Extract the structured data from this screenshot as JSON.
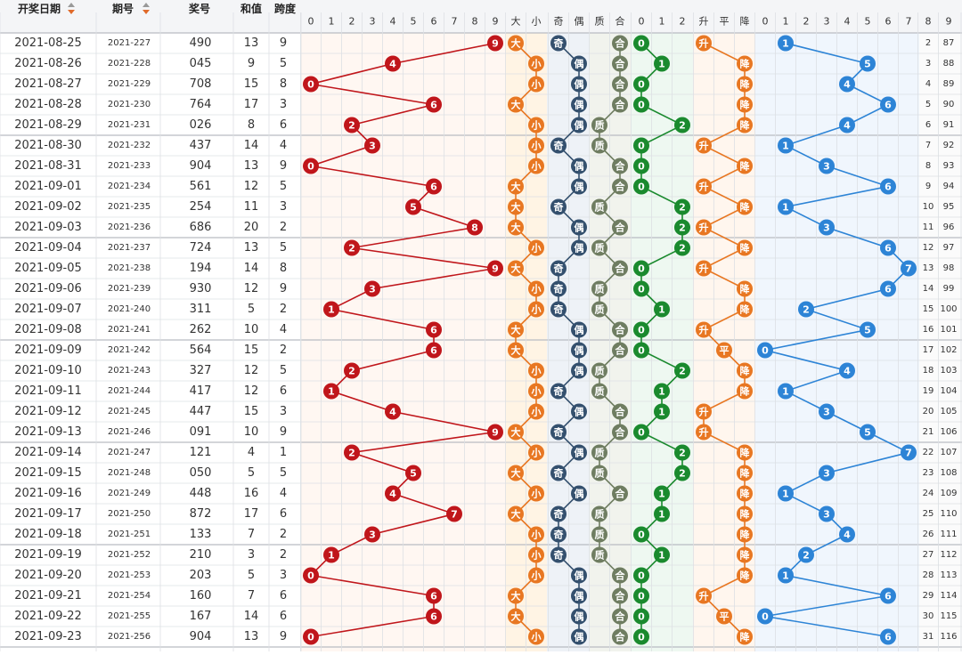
{
  "header": {
    "date": "开奖日期",
    "issue": "期号",
    "number": "奖号",
    "sum": "和值",
    "span": "跨度",
    "digits": [
      "0",
      "1",
      "2",
      "3",
      "4",
      "5",
      "6",
      "7",
      "8",
      "9"
    ],
    "big": "大",
    "small": "小",
    "odd": "奇",
    "even": "偶",
    "prime": "质",
    "composite": "合",
    "road": [
      "0",
      "1",
      "2"
    ],
    "up": "升",
    "flat": "平",
    "down": "降",
    "sum_digits": [
      "0",
      "1",
      "2",
      "3",
      "4",
      "5",
      "6",
      "7",
      "8",
      "9"
    ]
  },
  "colors": {
    "red": "#c0161b",
    "orange": "#e87722",
    "navy": "#34506e",
    "olive": "#6f7d61",
    "green": "#1a8a2e",
    "blue": "#2d84d6",
    "teal": "#6fb6b2"
  },
  "chart_data": {
    "type": "table",
    "rows": [
      {
        "date": "2021-08-25",
        "issue": "2021-227",
        "num": "490",
        "sum": "13",
        "span": "9",
        "d": "9",
        "bs": "大",
        "oe": "奇",
        "pc": "合",
        "rd": "0",
        "ud": "升",
        "tail": "1",
        "c1": "2",
        "c2": "87"
      },
      {
        "date": "2021-08-26",
        "issue": "2021-228",
        "num": "045",
        "sum": "9",
        "span": "5",
        "d": "4",
        "bs": "小",
        "oe": "偶",
        "pc": "合",
        "rd": "1",
        "ud": "降",
        "tail": "5",
        "c1": "3",
        "c2": "88"
      },
      {
        "date": "2021-08-27",
        "issue": "2021-229",
        "num": "708",
        "sum": "15",
        "span": "8",
        "d": "0",
        "bs": "小",
        "oe": "偶",
        "pc": "合",
        "rd": "0",
        "ud": "降",
        "tail": "4",
        "c1": "4",
        "c2": "89"
      },
      {
        "date": "2021-08-28",
        "issue": "2021-230",
        "num": "764",
        "sum": "17",
        "span": "3",
        "d": "6",
        "bs": "大",
        "oe": "偶",
        "pc": "合",
        "rd": "0",
        "ud": "降",
        "tail": "6",
        "c1": "5",
        "c2": "90"
      },
      {
        "date": "2021-08-29",
        "issue": "2021-231",
        "num": "026",
        "sum": "8",
        "span": "6",
        "d": "2",
        "bs": "小",
        "oe": "偶",
        "pc": "质",
        "rd": "2",
        "ud": "降",
        "tail": "4",
        "c1": "6",
        "c2": "91"
      },
      {
        "date": "2021-08-30",
        "issue": "2021-232",
        "num": "437",
        "sum": "14",
        "span": "4",
        "d": "3",
        "bs": "小",
        "oe": "奇",
        "pc": "质",
        "rd": "0",
        "ud": "升",
        "tail": "1",
        "c1": "7",
        "c2": "92"
      },
      {
        "date": "2021-08-31",
        "issue": "2021-233",
        "num": "904",
        "sum": "13",
        "span": "9",
        "d": "0",
        "bs": "小",
        "oe": "偶",
        "pc": "合",
        "rd": "0",
        "ud": "降",
        "tail": "3",
        "c1": "8",
        "c2": "93"
      },
      {
        "date": "2021-09-01",
        "issue": "2021-234",
        "num": "561",
        "sum": "12",
        "span": "5",
        "d": "6",
        "bs": "大",
        "oe": "偶",
        "pc": "合",
        "rd": "0",
        "ud": "升",
        "tail": "6",
        "c1": "9",
        "c2": "94"
      },
      {
        "date": "2021-09-02",
        "issue": "2021-235",
        "num": "254",
        "sum": "11",
        "span": "3",
        "d": "5",
        "bs": "大",
        "oe": "奇",
        "pc": "质",
        "rd": "2",
        "ud": "降",
        "tail": "1",
        "c1": "10",
        "c2": "95"
      },
      {
        "date": "2021-09-03",
        "issue": "2021-236",
        "num": "686",
        "sum": "20",
        "span": "2",
        "d": "8",
        "bs": "大",
        "oe": "偶",
        "pc": "合",
        "rd": "2",
        "ud": "升",
        "tail": "3",
        "c1": "11",
        "c2": "96"
      },
      {
        "date": "2021-09-04",
        "issue": "2021-237",
        "num": "724",
        "sum": "13",
        "span": "5",
        "d": "2",
        "bs": "小",
        "oe": "偶",
        "pc": "质",
        "rd": "2",
        "ud": "降",
        "tail": "6",
        "c1": "12",
        "c2": "97"
      },
      {
        "date": "2021-09-05",
        "issue": "2021-238",
        "num": "194",
        "sum": "14",
        "span": "8",
        "d": "9",
        "bs": "大",
        "oe": "奇",
        "pc": "合",
        "rd": "0",
        "ud": "升",
        "tail": "7",
        "c1": "13",
        "c2": "98"
      },
      {
        "date": "2021-09-06",
        "issue": "2021-239",
        "num": "930",
        "sum": "12",
        "span": "9",
        "d": "3",
        "bs": "小",
        "oe": "奇",
        "pc": "质",
        "rd": "0",
        "ud": "降",
        "tail": "6",
        "c1": "14",
        "c2": "99"
      },
      {
        "date": "2021-09-07",
        "issue": "2021-240",
        "num": "311",
        "sum": "5",
        "span": "2",
        "d": "1",
        "bs": "小",
        "oe": "奇",
        "pc": "质",
        "rd": "1",
        "ud": "降",
        "tail": "2",
        "c1": "15",
        "c2": "100"
      },
      {
        "date": "2021-09-08",
        "issue": "2021-241",
        "num": "262",
        "sum": "10",
        "span": "4",
        "d": "6",
        "bs": "大",
        "oe": "偶",
        "pc": "合",
        "rd": "0",
        "ud": "升",
        "tail": "5",
        "c1": "16",
        "c2": "101"
      },
      {
        "date": "2021-09-09",
        "issue": "2021-242",
        "num": "564",
        "sum": "15",
        "span": "2",
        "d": "6",
        "bs": "大",
        "oe": "偶",
        "pc": "合",
        "rd": "0",
        "ud": "平",
        "tail": "0",
        "c1": "17",
        "c2": "102"
      },
      {
        "date": "2021-09-10",
        "issue": "2021-243",
        "num": "327",
        "sum": "12",
        "span": "5",
        "d": "2",
        "bs": "小",
        "oe": "偶",
        "pc": "质",
        "rd": "2",
        "ud": "降",
        "tail": "4",
        "c1": "18",
        "c2": "103"
      },
      {
        "date": "2021-09-11",
        "issue": "2021-244",
        "num": "417",
        "sum": "12",
        "span": "6",
        "d": "1",
        "bs": "小",
        "oe": "奇",
        "pc": "质",
        "rd": "1",
        "ud": "降",
        "tail": "1",
        "c1": "19",
        "c2": "104"
      },
      {
        "date": "2021-09-12",
        "issue": "2021-245",
        "num": "447",
        "sum": "15",
        "span": "3",
        "d": "4",
        "bs": "小",
        "oe": "偶",
        "pc": "合",
        "rd": "1",
        "ud": "升",
        "tail": "3",
        "c1": "20",
        "c2": "105"
      },
      {
        "date": "2021-09-13",
        "issue": "2021-246",
        "num": "091",
        "sum": "10",
        "span": "9",
        "d": "9",
        "bs": "大",
        "oe": "奇",
        "pc": "合",
        "rd": "0",
        "ud": "升",
        "tail": "5",
        "c1": "21",
        "c2": "106"
      },
      {
        "date": "2021-09-14",
        "issue": "2021-247",
        "num": "121",
        "sum": "4",
        "span": "1",
        "d": "2",
        "bs": "小",
        "oe": "偶",
        "pc": "质",
        "rd": "2",
        "ud": "降",
        "tail": "7",
        "c1": "22",
        "c2": "107"
      },
      {
        "date": "2021-09-15",
        "issue": "2021-248",
        "num": "050",
        "sum": "5",
        "span": "5",
        "d": "5",
        "bs": "大",
        "oe": "奇",
        "pc": "质",
        "rd": "2",
        "ud": "降",
        "tail": "3",
        "c1": "23",
        "c2": "108"
      },
      {
        "date": "2021-09-16",
        "issue": "2021-249",
        "num": "448",
        "sum": "16",
        "span": "4",
        "d": "4",
        "bs": "小",
        "oe": "偶",
        "pc": "合",
        "rd": "1",
        "ud": "降",
        "tail": "1",
        "c1": "24",
        "c2": "109"
      },
      {
        "date": "2021-09-17",
        "issue": "2021-250",
        "num": "872",
        "sum": "17",
        "span": "6",
        "d": "7",
        "bs": "大",
        "oe": "奇",
        "pc": "质",
        "rd": "1",
        "ud": "降",
        "tail": "3",
        "c1": "25",
        "c2": "110"
      },
      {
        "date": "2021-09-18",
        "issue": "2021-251",
        "num": "133",
        "sum": "7",
        "span": "2",
        "d": "3",
        "bs": "小",
        "oe": "奇",
        "pc": "质",
        "rd": "0",
        "ud": "降",
        "tail": "4",
        "c1": "26",
        "c2": "111"
      },
      {
        "date": "2021-09-19",
        "issue": "2021-252",
        "num": "210",
        "sum": "3",
        "span": "2",
        "d": "1",
        "bs": "小",
        "oe": "奇",
        "pc": "质",
        "rd": "1",
        "ud": "降",
        "tail": "2",
        "c1": "27",
        "c2": "112"
      },
      {
        "date": "2021-09-20",
        "issue": "2021-253",
        "num": "203",
        "sum": "5",
        "span": "3",
        "d": "0",
        "bs": "小",
        "oe": "偶",
        "pc": "合",
        "rd": "0",
        "ud": "降",
        "tail": "1",
        "c1": "28",
        "c2": "113"
      },
      {
        "date": "2021-09-21",
        "issue": "2021-254",
        "num": "160",
        "sum": "7",
        "span": "6",
        "d": "6",
        "bs": "大",
        "oe": "偶",
        "pc": "合",
        "rd": "0",
        "ud": "升",
        "tail": "6",
        "c1": "29",
        "c2": "114"
      },
      {
        "date": "2021-09-22",
        "issue": "2021-255",
        "num": "167",
        "sum": "14",
        "span": "6",
        "d": "6",
        "bs": "大",
        "oe": "偶",
        "pc": "合",
        "rd": "0",
        "ud": "平",
        "tail": "0",
        "c1": "30",
        "c2": "115"
      },
      {
        "date": "2021-09-23",
        "issue": "2021-256",
        "num": "904",
        "sum": "13",
        "span": "9",
        "d": "0",
        "bs": "小",
        "oe": "偶",
        "pc": "合",
        "rd": "0",
        "ud": "降",
        "tail": "6",
        "c1": "31",
        "c2": "116"
      }
    ]
  }
}
